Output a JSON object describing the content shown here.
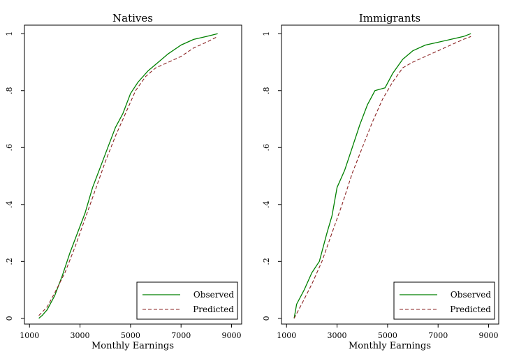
{
  "chart_data": [
    {
      "type": "line",
      "title": "Natives",
      "xlabel": "Monthly Earnings",
      "ylabel": "",
      "xlim": [
        800,
        9400
      ],
      "ylim": [
        -0.02,
        1.03
      ],
      "x_ticks": [
        1000,
        3000,
        5000,
        7000,
        9000
      ],
      "x_tick_labels": [
        "1000",
        "3000",
        "5000",
        "7000",
        "9000"
      ],
      "y_ticks": [
        0,
        0.2,
        0.4,
        0.6,
        0.8,
        1
      ],
      "y_tick_labels": [
        "0",
        ".2",
        ".4",
        ".6",
        ".8",
        "1"
      ],
      "grid": false,
      "legend_position": "bottom-right",
      "series": [
        {
          "name": "Observed",
          "color": "#008000",
          "style": "solid",
          "points": [
            [
              1370,
              0
            ],
            [
              1500,
              0.01
            ],
            [
              1700,
              0.03
            ],
            [
              2000,
              0.08
            ],
            [
              2300,
              0.15
            ],
            [
              2600,
              0.23
            ],
            [
              2900,
              0.3
            ],
            [
              3200,
              0.37
            ],
            [
              3500,
              0.46
            ],
            [
              3800,
              0.53
            ],
            [
              4100,
              0.6
            ],
            [
              4400,
              0.67
            ],
            [
              4700,
              0.72
            ],
            [
              5000,
              0.79
            ],
            [
              5300,
              0.83
            ],
            [
              5700,
              0.87
            ],
            [
              6100,
              0.9
            ],
            [
              6500,
              0.93
            ],
            [
              7000,
              0.96
            ],
            [
              7500,
              0.98
            ],
            [
              8000,
              0.99
            ],
            [
              8450,
              1.0
            ]
          ]
        },
        {
          "name": "Predicted",
          "color": "#8b2323",
          "style": "dashed",
          "points": [
            [
              1370,
              0.01
            ],
            [
              1700,
              0.04
            ],
            [
              2000,
              0.09
            ],
            [
              2400,
              0.16
            ],
            [
              2800,
              0.25
            ],
            [
              3200,
              0.35
            ],
            [
              3600,
              0.45
            ],
            [
              4000,
              0.55
            ],
            [
              4400,
              0.64
            ],
            [
              4800,
              0.72
            ],
            [
              5200,
              0.8
            ],
            [
              5600,
              0.85
            ],
            [
              6000,
              0.88
            ],
            [
              6500,
              0.9
            ],
            [
              7000,
              0.92
            ],
            [
              7500,
              0.95
            ],
            [
              8000,
              0.97
            ],
            [
              8450,
              0.99
            ]
          ]
        }
      ]
    },
    {
      "type": "line",
      "title": "Immigrants",
      "xlabel": "Monthly Earnings",
      "ylabel": "",
      "xlim": [
        800,
        9400
      ],
      "ylim": [
        -0.02,
        1.03
      ],
      "x_ticks": [
        1000,
        3000,
        5000,
        7000,
        9000
      ],
      "x_tick_labels": [
        "1000",
        "3000",
        "5000",
        "7000",
        "9000"
      ],
      "y_ticks": [
        0,
        0.2,
        0.4,
        0.6,
        0.8,
        1
      ],
      "y_tick_labels": [
        "0",
        ".2",
        ".4",
        ".6",
        ".8",
        "1"
      ],
      "grid": false,
      "legend_position": "bottom-right",
      "series": [
        {
          "name": "Observed",
          "color": "#008000",
          "style": "solid",
          "points": [
            [
              1300,
              0
            ],
            [
              1400,
              0.05
            ],
            [
              1700,
              0.1
            ],
            [
              2000,
              0.16
            ],
            [
              2300,
              0.2
            ],
            [
              2600,
              0.3
            ],
            [
              2800,
              0.36
            ],
            [
              3000,
              0.46
            ],
            [
              3300,
              0.52
            ],
            [
              3600,
              0.6
            ],
            [
              3900,
              0.68
            ],
            [
              4200,
              0.75
            ],
            [
              4500,
              0.8
            ],
            [
              4900,
              0.81
            ],
            [
              5200,
              0.86
            ],
            [
              5600,
              0.91
            ],
            [
              6000,
              0.94
            ],
            [
              6500,
              0.96
            ],
            [
              7000,
              0.97
            ],
            [
              7500,
              0.98
            ],
            [
              8000,
              0.99
            ],
            [
              8300,
              1.0
            ]
          ]
        },
        {
          "name": "Predicted",
          "color": "#8b2323",
          "style": "dashed",
          "points": [
            [
              1300,
              0
            ],
            [
              1600,
              0.05
            ],
            [
              2000,
              0.12
            ],
            [
              2400,
              0.2
            ],
            [
              2800,
              0.3
            ],
            [
              3200,
              0.4
            ],
            [
              3600,
              0.51
            ],
            [
              4000,
              0.6
            ],
            [
              4400,
              0.69
            ],
            [
              4800,
              0.77
            ],
            [
              5200,
              0.83
            ],
            [
              5600,
              0.88
            ],
            [
              6000,
              0.9
            ],
            [
              6500,
              0.92
            ],
            [
              7000,
              0.94
            ],
            [
              7500,
              0.96
            ],
            [
              8000,
              0.98
            ],
            [
              8300,
              0.99
            ]
          ]
        }
      ]
    }
  ]
}
